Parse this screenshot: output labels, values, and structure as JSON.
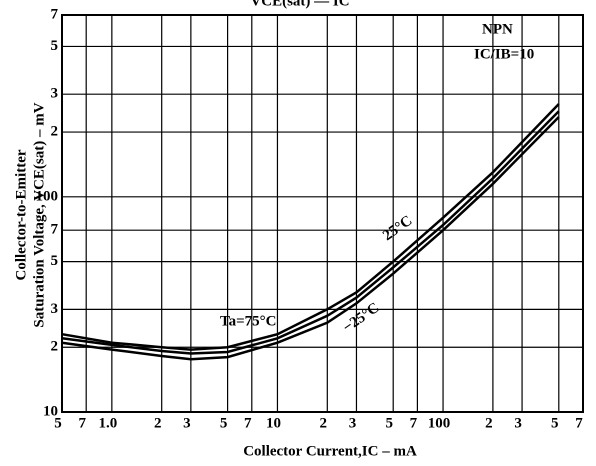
{
  "chart_data": {
    "type": "line",
    "title": "VCE(sat) — IC",
    "x_label": "Collector Current,IC – mA",
    "y_label": [
      "Collector-to-Emitter",
      "Saturation Voltage, VCE(sat) – mV"
    ],
    "annotations": [
      "NPN",
      "IC/IB=10"
    ],
    "x": [
      0.5,
      1,
      2,
      3,
      5,
      10,
      20,
      30,
      50,
      100,
      200,
      500
    ],
    "series": [
      {
        "name": "Ta=75°C",
        "color": "#000000",
        "values": [
          23,
          21,
          20,
          19.5,
          20,
          23,
          30,
          36,
          50,
          80,
          130,
          270
        ]
      },
      {
        "name": "25°C",
        "color": "#000000",
        "values": [
          22,
          20.5,
          19.2,
          18.7,
          19,
          22,
          28,
          34,
          47,
          74,
          122,
          250
        ]
      },
      {
        "name": "−25°C",
        "color": "#000000",
        "values": [
          21,
          19.5,
          18.2,
          17.6,
          18,
          21,
          26,
          32,
          44,
          70,
          115,
          235
        ]
      }
    ],
    "xlim": [
      0.5,
      700
    ],
    "ylim": [
      10,
      700
    ],
    "log_x": true,
    "log_y": true,
    "grid": true,
    "xticks": [
      {
        "value": 0.5,
        "label": "5"
      },
      {
        "value": 0.7,
        "label": "7"
      },
      {
        "value": 1,
        "label": "1.0"
      },
      {
        "value": 2,
        "label": "2"
      },
      {
        "value": 3,
        "label": "3"
      },
      {
        "value": 5,
        "label": "5"
      },
      {
        "value": 7,
        "label": "7"
      },
      10,
      {
        "value": 20,
        "label": "2"
      },
      {
        "value": 30,
        "label": "3"
      },
      {
        "value": 50,
        "label": "5"
      },
      {
        "value": 70,
        "label": "7"
      },
      100,
      {
        "value": 200,
        "label": "2"
      },
      {
        "value": 300,
        "label": "3"
      },
      {
        "value": 500,
        "label": "5"
      },
      {
        "value": 700,
        "label": "7"
      }
    ],
    "yticks": [
      10,
      {
        "value": 20,
        "label": "2"
      },
      {
        "value": 30,
        "label": "3"
      },
      {
        "value": 50,
        "label": "5"
      },
      {
        "value": 70,
        "label": "7"
      },
      100,
      {
        "value": 200,
        "label": "2"
      },
      {
        "value": 300,
        "label": "3"
      },
      {
        "value": 500,
        "label": "5"
      },
      {
        "value": 700,
        "label": "7"
      }
    ]
  }
}
